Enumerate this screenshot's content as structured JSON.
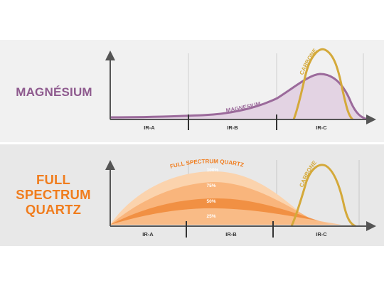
{
  "colors": {
    "magnesium": "#9b6a9b",
    "magnesium_fill": "#d9c2d9",
    "carbone": "#d4a93a",
    "quartz_title": "#f07d1e",
    "quartz_band_outer": "#fbd3ad",
    "quartz_band_mid": "#f8a765",
    "quartz_band_inner": "#f07d1e",
    "axis": "#555555",
    "panel_top_bg": "#f1f1f1",
    "panel_bottom_bg": "#e8e8e8"
  },
  "top": {
    "title": "MAGNÉSIUM",
    "curve_labels": {
      "magnesium": "MAGNESIUM",
      "carbone": "CARBONE"
    },
    "zones": [
      "IR-A",
      "IR-B",
      "IR-C"
    ]
  },
  "bottom": {
    "title_lines": [
      "FULL",
      "SPECTRUM",
      "QUARTZ"
    ],
    "curve_labels": {
      "quartz": "FULL SPECTRUM QUARTZ",
      "carbone": "CARBONE"
    },
    "levels": [
      "100%",
      "75%",
      "50%",
      "25%"
    ],
    "zones": [
      "IR-A",
      "IR-B",
      "IR-C"
    ]
  }
}
